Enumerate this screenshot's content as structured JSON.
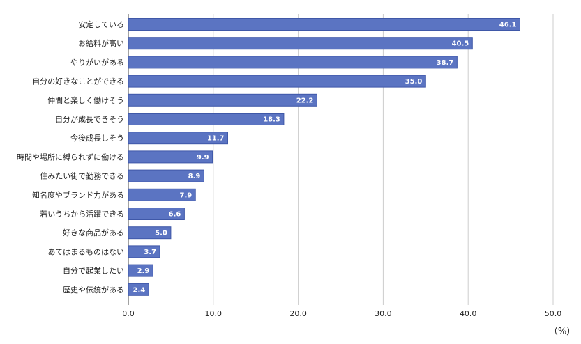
{
  "chart_data": {
    "type": "bar",
    "orientation": "horizontal",
    "categories": [
      "安定している",
      "お給料が高い",
      "やりがいがある",
      "自分の好きなことができる",
      "仲間と楽しく働けそう",
      "自分が成長できそう",
      "今後成長しそう",
      "時間や場所に縛られずに働ける",
      "住みたい街で勤務できる",
      "知名度やブランド力がある",
      "若いうちから活躍できる",
      "好きな商品がある",
      "あてはまるものはない",
      "自分で起業したい",
      "歴史や伝統がある"
    ],
    "values": [
      46.1,
      40.5,
      38.7,
      35.0,
      22.2,
      18.3,
      11.7,
      9.9,
      8.9,
      7.9,
      6.6,
      5.0,
      3.7,
      2.9,
      2.4
    ],
    "value_labels": [
      "46.1",
      "40.5",
      "38.7",
      "35.0",
      "22.2",
      "18.3",
      "11.7",
      "9.9",
      "8.9",
      "7.9",
      "6.6",
      "5.0",
      "3.7",
      "2.9",
      "2.4"
    ],
    "xlim": [
      0,
      50
    ],
    "xticks": [
      0,
      10,
      20,
      30,
      40,
      50
    ],
    "xtick_labels": [
      "0.0",
      "10.0",
      "20.0",
      "30.0",
      "40.0",
      "50.0"
    ],
    "unit_label": "（%）",
    "grid": "vertical",
    "bar_color": "#5b74c2",
    "bar_edge_color": "#3f58a8",
    "grid_color": "#cccccc"
  }
}
